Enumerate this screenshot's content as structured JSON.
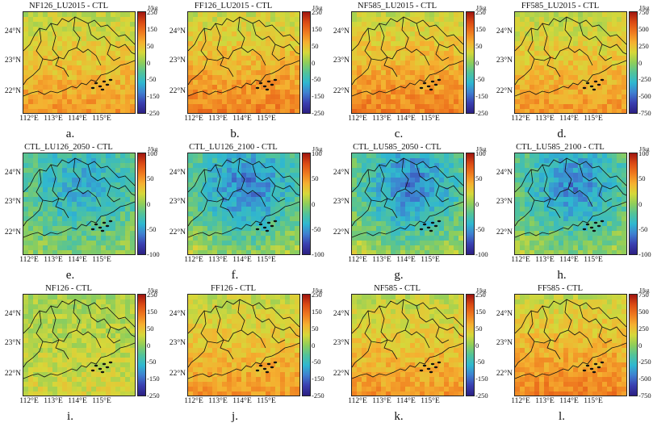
{
  "panels": [
    {
      "title": "NF126_LU2015 - CTL",
      "letter": "a.",
      "unit": "J/kg",
      "ticks": [
        "250",
        "150",
        "50",
        "0",
        "-50",
        "-150",
        "-250"
      ],
      "range": [
        -250,
        250
      ],
      "base": -100
    },
    {
      "title": "FF126_LU2015 - CTL",
      "letter": "b.",
      "unit": "J/kg",
      "ticks": [
        "250",
        "150",
        "50",
        "0",
        "-50",
        "-150",
        "-250"
      ],
      "range": [
        -250,
        250
      ],
      "base": -120
    },
    {
      "title": "NF585_LU2015 - CTL",
      "letter": "c.",
      "unit": "J/kg",
      "ticks": [
        "250",
        "150",
        "50",
        "0",
        "-50",
        "-150",
        "-250"
      ],
      "range": [
        -250,
        250
      ],
      "base": -120
    },
    {
      "title": "FF585_LU2015 - CTL",
      "letter": "d.",
      "unit": "J/kg",
      "ticks": [
        "750",
        "500",
        "250",
        "0",
        "-250",
        "-500",
        "-750"
      ],
      "range": [
        -750,
        750
      ],
      "base": -300
    },
    {
      "title": "CTL_LU126_2050 - CTL",
      "letter": "e.",
      "unit": "J/kg",
      "ticks": [
        "100",
        "50",
        "0",
        "-50",
        "-100"
      ],
      "range": [
        -100,
        100
      ],
      "base": 30
    },
    {
      "title": "CTL_LU126_2100 - CTL",
      "letter": "f.",
      "unit": "J/kg",
      "ticks": [
        "100",
        "50",
        "0",
        "-50",
        "-100"
      ],
      "range": [
        -100,
        100
      ],
      "base": 50
    },
    {
      "title": "CTL_LU585_2050 - CTL",
      "letter": "g.",
      "unit": "J/kg",
      "ticks": [
        "100",
        "50",
        "0",
        "-50",
        "-100"
      ],
      "range": [
        -100,
        100
      ],
      "base": 50
    },
    {
      "title": "CTL_LU585_2100 - CTL",
      "letter": "h.",
      "unit": "J/kg",
      "ticks": [
        "100",
        "50",
        "0",
        "-50",
        "-100"
      ],
      "range": [
        -100,
        100
      ],
      "base": 45
    },
    {
      "title": "NF126 - CTL",
      "letter": "i.",
      "unit": "J/kg",
      "ticks": [
        "250",
        "150",
        "50",
        "0",
        "-50",
        "-150",
        "-250"
      ],
      "range": [
        -250,
        250
      ],
      "base": -40
    },
    {
      "title": "FF126 - CTL",
      "letter": "j.",
      "unit": "J/kg",
      "ticks": [
        "250",
        "150",
        "50",
        "0",
        "-50",
        "-150",
        "-250"
      ],
      "range": [
        -250,
        250
      ],
      "base": -100
    },
    {
      "title": "NF585 - CTL",
      "letter": "k.",
      "unit": "J/kg",
      "ticks": [
        "250",
        "150",
        "50",
        "0",
        "-50",
        "-150",
        "-250"
      ],
      "range": [
        -250,
        250
      ],
      "base": -100
    },
    {
      "title": "FF585 - CTL",
      "letter": "l.",
      "unit": "J/kg",
      "ticks": [
        "750",
        "500",
        "250",
        "0",
        "-250",
        "-500",
        "-750"
      ],
      "range": [
        -750,
        750
      ],
      "base": -350
    }
  ],
  "lat_labels": [
    "24°N",
    "23°N",
    "22°N"
  ],
  "lon_labels": [
    "112°E",
    "113°E",
    "114°E",
    "115°E"
  ],
  "colormap": [
    "#2b1f82",
    "#3a3fb0",
    "#3f7fd0",
    "#2fb7d0",
    "#52c39a",
    "#8fce5a",
    "#d6d83a",
    "#f5b030",
    "#ef7a1f",
    "#db4a14",
    "#a01510"
  ]
}
